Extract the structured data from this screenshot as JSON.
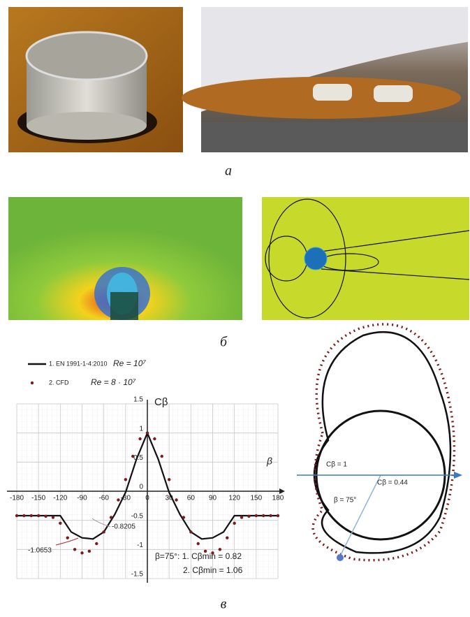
{
  "captions": {
    "a": "а",
    "b": "б",
    "c": "в"
  },
  "polar": {
    "labels": [
      "Cβ = 1",
      "Cβ = 0.44",
      "β = 75°"
    ]
  },
  "chart_data": {
    "type": "line",
    "x_label": "β",
    "y_label": "Cβ",
    "legend_notes": [
      "Re = 10⁷",
      "Re = 8 · 10⁷"
    ],
    "series": [
      {
        "name": "1. EN 1991-1-4:2010",
        "color": "#111111",
        "marker": "line",
        "x": [
          -180,
          -120,
          -105,
          -90,
          -75,
          -60,
          -45,
          -30,
          -15,
          0,
          15,
          30,
          45,
          60,
          75,
          90,
          105,
          120,
          180
        ],
        "values": [
          -0.42,
          -0.42,
          -0.7,
          -0.8,
          -0.82,
          -0.7,
          -0.4,
          -0.02,
          0.55,
          1,
          0.55,
          -0.02,
          -0.4,
          -0.7,
          -0.82,
          -0.8,
          -0.7,
          -0.42,
          -0.42
        ]
      },
      {
        "name": "2. CFD",
        "color": "#7b1a1a",
        "marker": "dot",
        "x": [
          -180,
          -170,
          -160,
          -150,
          -140,
          -130,
          -120,
          -110,
          -100,
          -90,
          -80,
          -70,
          -60,
          -50,
          -40,
          -30,
          -20,
          -10,
          0,
          10,
          20,
          30,
          40,
          50,
          60,
          70,
          80,
          90,
          100,
          110,
          120,
          130,
          140,
          150,
          160,
          170,
          180
        ],
        "values": [
          -0.42,
          -0.42,
          -0.42,
          -0.42,
          -0.43,
          -0.45,
          -0.55,
          -0.8,
          -1.0,
          -1.06,
          -1.03,
          -0.9,
          -0.7,
          -0.45,
          -0.15,
          0.2,
          0.6,
          0.9,
          1,
          0.9,
          0.6,
          0.2,
          -0.15,
          -0.45,
          -0.7,
          -0.9,
          -1.03,
          -1.06,
          -1.0,
          -0.8,
          -0.55,
          -0.45,
          -0.43,
          -0.42,
          -0.42,
          -0.42,
          -0.42
        ]
      }
    ],
    "annotations": [
      "-1.0653",
      "-0.8205",
      "β=75°: 1. Cβmin = 0.82",
      "2. Cβmin = 1.06"
    ],
    "xlim": [
      -180,
      180
    ],
    "xticks": [
      -180,
      -150,
      -120,
      -90,
      -60,
      -30,
      0,
      30,
      60,
      90,
      120,
      150,
      180
    ],
    "ylim": [
      -1.5,
      1.5
    ],
    "yticks": [
      -1.5,
      -1,
      -0.5,
      0,
      0.5,
      1,
      1.5
    ],
    "grid": true
  }
}
